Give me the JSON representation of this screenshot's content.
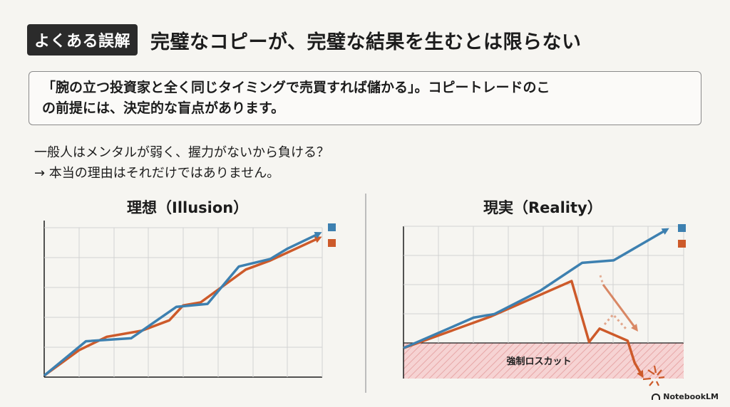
{
  "header": {
    "tag": "よくある誤解",
    "title": "完璧なコピーが、完璧な結果を生むとは限らない"
  },
  "premise": {
    "line1": "「腕の立つ投資家と全く同じタイミングで売買すれば儲かる」。コピートレードのこ",
    "line2": "の前提には、決定的な盲点があります。"
  },
  "body": {
    "line1": "一般人はメンタルが弱く、握力がないから負ける？",
    "line2": "→ 本当の理由はそれだけではありません。"
  },
  "colors": {
    "blue": "#3d80b0",
    "orange": "#cd5a2a",
    "loss_zone": "#f6d3d3",
    "grid": "#d2d2d2"
  },
  "chart_data": [
    {
      "type": "line",
      "title": "理想（Illusion）",
      "xlim": [
        0,
        8
      ],
      "ylim": [
        0,
        10
      ],
      "series": [
        {
          "name": "",
          "color": "#3d80b0",
          "x": [
            0,
            1.2,
            2.5,
            3.8,
            4.7,
            5.6,
            6.5,
            7.0,
            7.9
          ],
          "y": [
            0.1,
            2.4,
            2.6,
            4.7,
            4.9,
            7.4,
            7.9,
            8.6,
            9.6
          ]
        },
        {
          "name": "",
          "color": "#cd5a2a",
          "x": [
            0,
            1.0,
            1.8,
            2.8,
            3.6,
            4.0,
            4.5,
            5.8,
            6.5,
            7.9
          ],
          "y": [
            0.1,
            1.8,
            2.7,
            3.1,
            3.8,
            4.8,
            5.0,
            7.2,
            7.8,
            9.3
          ]
        }
      ]
    },
    {
      "type": "line",
      "title": "現実（Reality）",
      "xlim": [
        0,
        8
      ],
      "ylim": [
        -2.5,
        10
      ],
      "annotation": "強制ロスカット",
      "series": [
        {
          "name": "",
          "color": "#3d80b0",
          "x": [
            0,
            2.0,
            2.6,
            3.9,
            5.1,
            6.0,
            7.5
          ],
          "y": [
            0,
            2.5,
            2.8,
            4.7,
            7.0,
            7.2,
            9.7
          ]
        },
        {
          "name": "",
          "color": "#cd5a2a",
          "x": [
            0,
            2.5,
            4.8,
            5.3,
            5.6,
            6.4,
            6.6,
            6.8
          ],
          "y": [
            0,
            2.6,
            5.5,
            0.5,
            1.6,
            0.6,
            -1.2,
            -2.2
          ]
        }
      ]
    }
  ],
  "brand": "NotebookLM"
}
